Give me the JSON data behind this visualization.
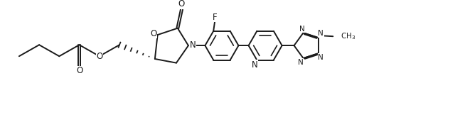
{
  "bg_color": "#ffffff",
  "line_color": "#1a1a1a",
  "line_width": 1.4,
  "font_size": 7.5,
  "figsize": [
    6.54,
    1.62
  ],
  "dpi": 100,
  "xlim": [
    0,
    6.54
  ],
  "ylim": [
    0,
    1.62
  ]
}
